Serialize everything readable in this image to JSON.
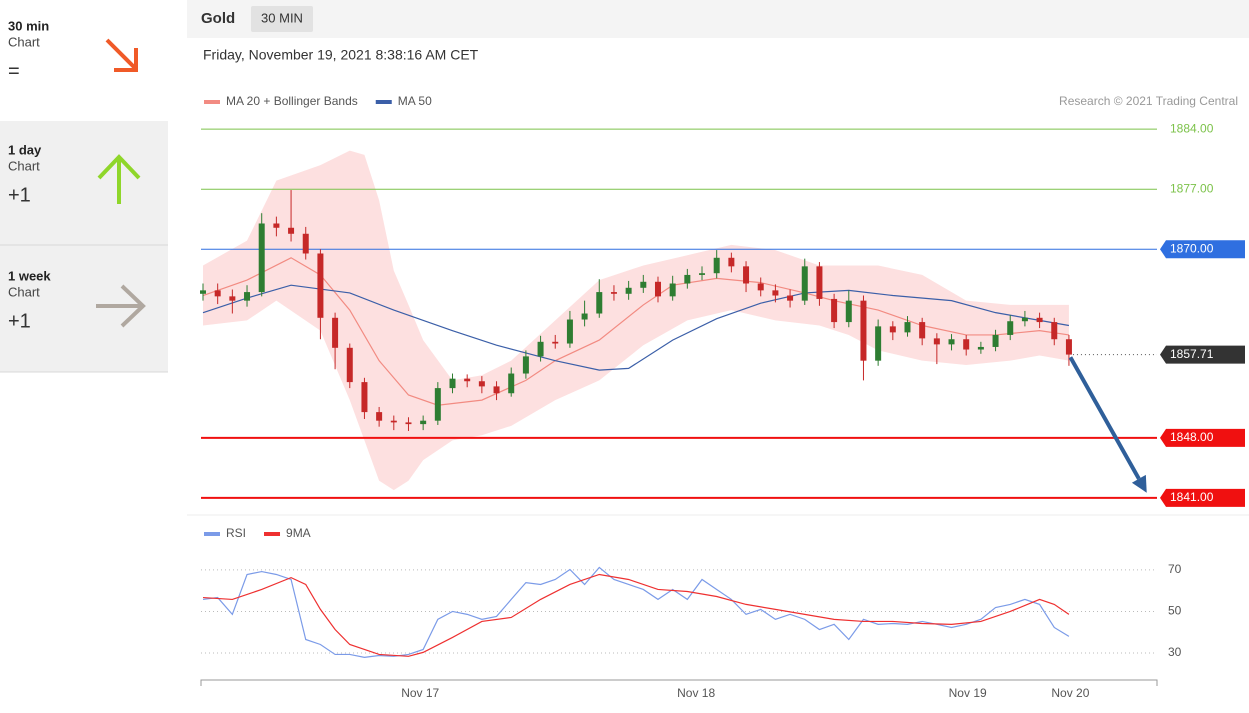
{
  "sidebar": [
    {
      "period": "30 min",
      "label": "Chart",
      "signal": "="
    },
    {
      "period": "1 day",
      "label": "Chart",
      "signal": "+1"
    },
    {
      "period": "1 week",
      "label": "Chart",
      "signal": "+1"
    }
  ],
  "header": {
    "instrument": "Gold",
    "timeframe": "30 MIN",
    "timestamp": "Friday, November 19, 2021 8:38:16 AM CET"
  },
  "chart_data": [
    {
      "type": "candlestick",
      "credit": "Research © 2021 Trading Central",
      "xlim": [
        0,
        65
      ],
      "ylim": [
        1839,
        1894.4
      ],
      "candles": {
        "up_color": "#2e7d32",
        "down_color": "#c62828",
        "open": [
          1864.8,
          1865.2,
          1864.5,
          1864.0,
          1865.0,
          1873.0,
          1872.5,
          1871.8,
          1869.5,
          1862.0,
          1858.5,
          1854.5,
          1851.0,
          1850.0,
          1849.8,
          1849.6,
          1850.0,
          1853.8,
          1854.9,
          1854.6,
          1854.0,
          1853.2,
          1855.5,
          1857.5,
          1859.2,
          1859.0,
          1861.8,
          1862.5,
          1865.0,
          1864.8,
          1865.5,
          1866.2,
          1864.5,
          1866.0,
          1867.0,
          1867.2,
          1869.0,
          1868.0,
          1866.0,
          1865.2,
          1864.6,
          1864.0,
          1868.0,
          1864.2,
          1861.5,
          1864.0,
          1857.0,
          1861.0,
          1860.3,
          1861.5,
          1859.6,
          1858.9,
          1859.5,
          1858.3,
          1858.6,
          1860.0,
          1861.6,
          1862.0,
          1861.5,
          1859.5
        ],
        "high": [
          1866.0,
          1866.0,
          1865.3,
          1865.8,
          1874.2,
          1873.8,
          1876.9,
          1872.6,
          1870.0,
          1862.6,
          1859.0,
          1855.0,
          1851.6,
          1850.6,
          1850.4,
          1850.6,
          1854.5,
          1855.5,
          1855.4,
          1855.2,
          1854.6,
          1856.2,
          1858.2,
          1859.9,
          1860.0,
          1862.8,
          1864.0,
          1866.5,
          1865.8,
          1866.3,
          1867.0,
          1866.8,
          1866.9,
          1867.7,
          1868.0,
          1869.9,
          1869.6,
          1868.6,
          1866.7,
          1865.9,
          1865.3,
          1868.9,
          1868.5,
          1864.8,
          1865.2,
          1864.6,
          1861.8,
          1861.6,
          1862.2,
          1862.0,
          1860.2,
          1860.1,
          1860.0,
          1859.2,
          1860.6,
          1862.3,
          1862.8,
          1862.6,
          1862.0,
          1860.0
        ],
        "low": [
          1864.0,
          1863.6,
          1862.5,
          1863.3,
          1864.5,
          1871.5,
          1870.9,
          1868.8,
          1859.5,
          1856.0,
          1853.8,
          1850.2,
          1849.3,
          1848.9,
          1848.8,
          1848.9,
          1849.5,
          1853.2,
          1853.9,
          1853.2,
          1852.4,
          1852.8,
          1854.9,
          1856.9,
          1858.4,
          1858.5,
          1861.0,
          1862.0,
          1864.0,
          1864.1,
          1864.9,
          1863.8,
          1864.0,
          1865.4,
          1866.4,
          1866.6,
          1867.3,
          1865.0,
          1864.5,
          1863.8,
          1863.2,
          1863.5,
          1863.4,
          1860.8,
          1860.9,
          1854.7,
          1856.4,
          1859.4,
          1859.8,
          1858.8,
          1856.6,
          1858.2,
          1857.6,
          1857.8,
          1858.1,
          1859.4,
          1861.0,
          1860.8,
          1858.8,
          1856.4
        ],
        "close": [
          1865.2,
          1864.5,
          1864.0,
          1865.0,
          1873.0,
          1872.5,
          1871.8,
          1869.5,
          1862.0,
          1858.5,
          1854.5,
          1851.0,
          1850.0,
          1849.8,
          1849.6,
          1850.0,
          1853.8,
          1854.9,
          1854.6,
          1854.0,
          1853.2,
          1855.5,
          1857.5,
          1859.2,
          1859.0,
          1861.8,
          1862.5,
          1865.0,
          1864.8,
          1865.5,
          1866.2,
          1864.5,
          1866.0,
          1867.0,
          1867.2,
          1869.0,
          1868.0,
          1866.0,
          1865.2,
          1864.6,
          1864.0,
          1868.0,
          1864.2,
          1861.5,
          1864.0,
          1857.0,
          1861.0,
          1860.3,
          1861.5,
          1859.6,
          1858.9,
          1859.5,
          1858.3,
          1858.6,
          1860.0,
          1861.6,
          1862.0,
          1861.5,
          1859.5,
          1857.71
        ]
      },
      "bands": {
        "color": "#fde0e0",
        "x": [
          0,
          3,
          5,
          8,
          10,
          11,
          12,
          13,
          14,
          15,
          17,
          19,
          21,
          24,
          27,
          30,
          33,
          36,
          39,
          42,
          44,
          46,
          49,
          52,
          55,
          57,
          59
        ],
        "upper": [
          1868.1,
          1871.0,
          1878.0,
          1879.8,
          1881.5,
          1881.0,
          1875.7,
          1867.5,
          1863.5,
          1859.4,
          1854.7,
          1855.3,
          1857.0,
          1861.7,
          1866.4,
          1868.1,
          1869.3,
          1870.5,
          1869.9,
          1868.1,
          1868.1,
          1868.1,
          1867.0,
          1864.0,
          1863.5,
          1863.5,
          1863.5
        ],
        "lower": [
          1861.1,
          1861.7,
          1864.0,
          1860.5,
          1852.4,
          1847.7,
          1843.0,
          1841.9,
          1843.0,
          1845.4,
          1847.7,
          1848.3,
          1849.4,
          1852.4,
          1854.7,
          1858.8,
          1861.7,
          1862.9,
          1861.7,
          1861.1,
          1860.0,
          1858.2,
          1857.0,
          1856.5,
          1857.0,
          1857.6,
          1857.0
        ]
      },
      "series": [
        {
          "name": "MA 20 + Bollinger Bands",
          "color": "#f28b82",
          "x": [
            0,
            3,
            6,
            8,
            10,
            12,
            14,
            16,
            19,
            22,
            24,
            27,
            30,
            32,
            35,
            38,
            41,
            43,
            46,
            49,
            52,
            54,
            57,
            59
          ],
          "values": [
            1864.6,
            1866.4,
            1869.0,
            1867.0,
            1862.9,
            1857.0,
            1853.0,
            1851.8,
            1852.4,
            1854.7,
            1857.0,
            1859.4,
            1863.5,
            1865.8,
            1866.6,
            1866.1,
            1864.9,
            1864.0,
            1862.9,
            1861.1,
            1860.0,
            1860.0,
            1860.5,
            1860.0
          ]
        },
        {
          "name": "MA 50",
          "color": "#3b5fa8",
          "x": [
            0,
            3,
            6,
            10,
            13,
            17,
            20,
            24,
            27,
            29,
            32,
            35,
            38,
            41,
            44,
            47,
            51,
            54,
            57,
            59
          ],
          "values": [
            1862.6,
            1864.3,
            1865.8,
            1864.9,
            1862.9,
            1860.5,
            1858.8,
            1857.0,
            1855.9,
            1856.1,
            1859.4,
            1861.9,
            1863.7,
            1864.9,
            1865.2,
            1864.6,
            1864.0,
            1862.6,
            1861.7,
            1861.1
          ]
        }
      ],
      "levels": [
        {
          "value": 1884,
          "label": "1884.00",
          "color": "#7cc24a",
          "tag": false,
          "width": 1
        },
        {
          "value": 1877,
          "label": "1877.00",
          "color": "#7cc24a",
          "tag": false,
          "width": 1
        },
        {
          "value": 1870,
          "label": "1870.00",
          "color": "#2f6fe0",
          "tag": true,
          "width": 1
        },
        {
          "value": 1848,
          "label": "1848.00",
          "color": "#f01010",
          "tag": true,
          "width": 2
        },
        {
          "value": 1841,
          "label": "1841.00",
          "color": "#f01010",
          "tag": true,
          "width": 2
        }
      ],
      "last_price": {
        "value": 1857.71,
        "label": "1857.71",
        "color": "#333333"
      },
      "arrow": {
        "x": [
          59.1,
          64.3
        ],
        "values": [
          1857.4,
          1841.6
        ],
        "color": "#2f5f9a"
      }
    },
    {
      "type": "line",
      "xlim": [
        0,
        65
      ],
      "ylim": [
        17,
        82
      ],
      "yticks": [
        30,
        50,
        70
      ],
      "grid": true,
      "xticks": [
        {
          "value": 14.8,
          "label": "Nov 17"
        },
        {
          "value": 33.6,
          "label": "Nov 18"
        },
        {
          "value": 52.1,
          "label": "Nov 19"
        },
        {
          "value": 59.1,
          "label": "Nov 20"
        }
      ],
      "series": [
        {
          "name": "RSI",
          "color": "#7b9be8",
          "x": [
            0,
            1,
            2,
            3,
            4,
            5,
            6,
            7,
            8,
            9,
            10,
            11,
            12,
            13,
            14,
            15,
            16,
            17,
            18,
            19,
            20,
            21,
            22,
            23,
            24,
            25,
            26,
            27,
            28,
            29,
            30,
            31,
            32,
            33,
            34,
            35,
            36,
            37,
            38,
            39,
            40,
            41,
            42,
            43,
            44,
            45,
            46,
            47,
            48,
            49,
            50,
            51,
            52,
            53,
            54,
            55,
            56,
            57,
            58,
            59
          ],
          "values": [
            55.8,
            56.7,
            48.6,
            67.8,
            69.2,
            67.8,
            65.4,
            36.5,
            34.1,
            29.3,
            29.3,
            27.9,
            28.8,
            28.4,
            29.3,
            31.7,
            46.2,
            50.0,
            48.6,
            46.2,
            47.6,
            55.8,
            63.9,
            63.0,
            65.4,
            70.2,
            63.0,
            71.2,
            65.4,
            63.0,
            60.6,
            55.8,
            60.6,
            55.8,
            65.4,
            60.6,
            55.8,
            48.6,
            51.0,
            46.2,
            48.6,
            46.2,
            41.3,
            43.8,
            36.5,
            46.2,
            43.8,
            44.2,
            43.8,
            45.2,
            43.8,
            42.3,
            43.8,
            46.2,
            51.9,
            53.4,
            55.8,
            53.4,
            42.3,
            38.0
          ]
        },
        {
          "name": "9MA",
          "color": "#ee3030",
          "x": [
            0,
            2,
            4,
            6,
            7,
            8,
            9,
            10,
            12,
            14,
            15,
            17,
            19,
            21,
            23,
            25,
            27,
            29,
            31,
            33,
            35,
            37,
            39,
            41,
            43,
            45,
            47,
            49,
            51,
            53,
            55,
            57,
            58,
            59
          ],
          "values": [
            56.7,
            55.8,
            60.6,
            66.3,
            63.0,
            51.0,
            41.3,
            34.1,
            29.3,
            28.4,
            30.3,
            37.5,
            45.2,
            47.1,
            55.8,
            63.0,
            67.8,
            65.4,
            60.6,
            59.6,
            57.2,
            53.4,
            51.0,
            48.6,
            46.2,
            45.2,
            45.2,
            44.2,
            43.8,
            45.2,
            50.0,
            55.8,
            53.4,
            48.6
          ]
        }
      ]
    }
  ]
}
